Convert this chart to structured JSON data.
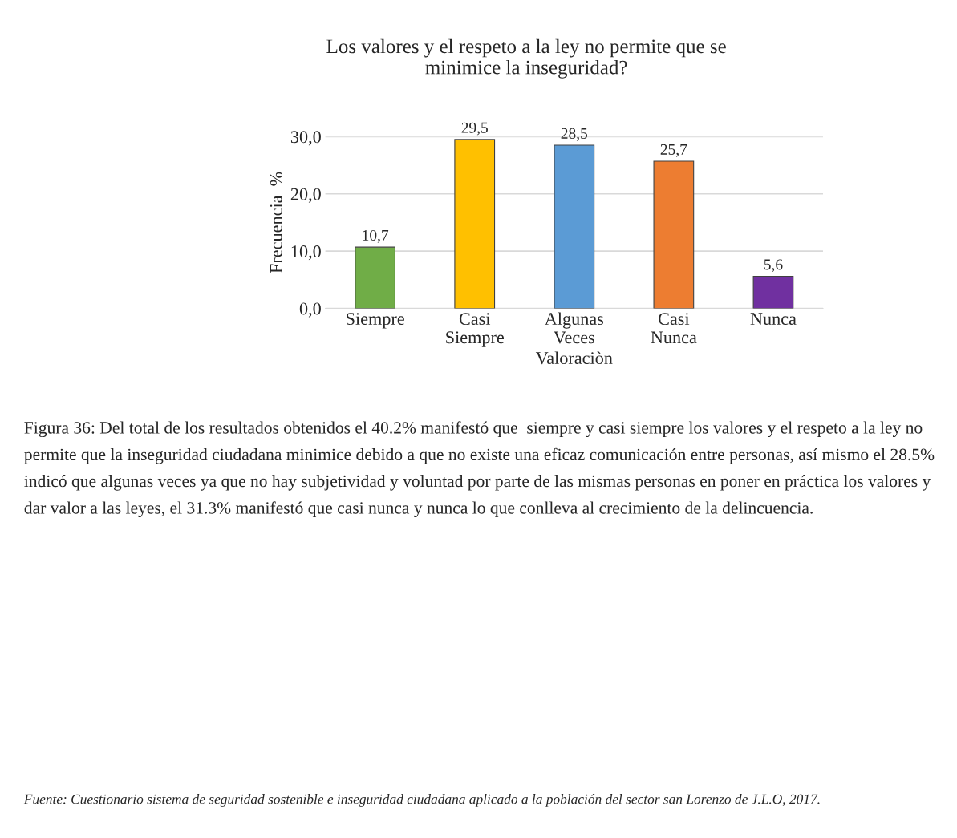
{
  "chart_data": {
    "type": "bar",
    "title": "Los valores y el respeto a la ley no permite que se\nminimice la inseguridad?",
    "xlabel": "Valoraciòn",
    "ylabel": "Frecuencia  %",
    "categories": [
      "Siempre",
      "Casi\nSiempre",
      "Algunas\nVeces",
      "Casi\nNunca",
      "Nunca"
    ],
    "values": [
      10.7,
      29.5,
      28.5,
      25.7,
      5.6
    ],
    "colors": [
      "#70ad47",
      "#ffc000",
      "#5b9bd5",
      "#ed7d31",
      "#7030a0"
    ],
    "value_labels": [
      "10,7",
      "29,5",
      "28,5",
      "25,7",
      "5,6"
    ],
    "ylim": [
      0,
      30
    ],
    "yticks": [
      {
        "value": 0,
        "label": "0,0"
      },
      {
        "value": 10,
        "label": "10,0"
      },
      {
        "value": 20,
        "label": "20,0"
      },
      {
        "value": 30,
        "label": "30,0"
      }
    ],
    "grid": "y",
    "annotations": [
      "Figura 36: Del total de los resultados obtenidos el 40.2% manifestó que  siempre y casi siempre los valores y el respeto a la ley no permite que la inseguridad ciudadana minimice debido a que no existe una eficaz comunicación entre personas, así mismo el 28.5% indicó que algunas veces ya que no hay subjetividad y voluntad por parte de las mismas personas en poner en práctica los valores y dar valor a las leyes, el 31.3% manifestó que casi nunca y nunca lo que conlleva al crecimiento de la delincuencia.",
      "Fuente: Cuestionario sistema de seguridad sostenible e inseguridad ciudadana aplicado a la población del sector san Lorenzo de J.L.O, 2017."
    ]
  }
}
